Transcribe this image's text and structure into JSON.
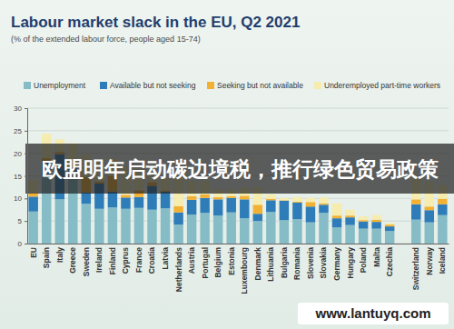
{
  "chart_data": {
    "type": "bar",
    "title": "Labour market slack in the EU, Q2 2021",
    "subtitle": "(% of the extended labour force, people aged 15-74)",
    "categories": [
      "EU",
      "Spain",
      "Italy",
      "Greece",
      "Sweden",
      "Ireland",
      "Finland",
      "Cyprus",
      "France",
      "Croatia",
      "Latvia",
      "Netherlands",
      "Austria",
      "Portugal",
      "Belgium",
      "Estonia",
      "Luxembourg",
      "Denmark",
      "Lithuania",
      "Bulgaria",
      "Romania",
      "Slovenia",
      "Slovakia",
      "Germany",
      "Hungary",
      "Poland",
      "Malta",
      "Czechia",
      null,
      "Switzerland",
      "Norway",
      "Iceland"
    ],
    "series": [
      {
        "name": "Unemployment",
        "color": "#86bcc6",
        "values": [
          7.1,
          15.3,
          9.8,
          15.8,
          8.8,
          7.7,
          8.0,
          7.7,
          7.9,
          7.5,
          7.8,
          4.2,
          6.4,
          6.8,
          6.2,
          6.9,
          5.6,
          5.0,
          7.0,
          5.2,
          5.4,
          4.7,
          6.8,
          3.6,
          4.1,
          3.3,
          3.3,
          2.8,
          null,
          5.3,
          4.7,
          6.3
        ]
      },
      {
        "name": "Available but not seeking",
        "color": "#2f7db8",
        "values": [
          3.3,
          2.6,
          10.0,
          1.2,
          2.5,
          5.6,
          3.5,
          2.5,
          2.4,
          5.3,
          3.7,
          2.7,
          3.3,
          3.3,
          3.6,
          3.2,
          4.2,
          1.6,
          2.6,
          4.3,
          3.7,
          3.5,
          1.8,
          2.0,
          1.7,
          1.6,
          1.5,
          1.0,
          null,
          3.4,
          2.7,
          2.4
        ]
      },
      {
        "name": "Seeking but not available",
        "color": "#f2b133",
        "values": [
          0.8,
          1.0,
          0.5,
          0.6,
          3.5,
          0.4,
          3.4,
          0.6,
          1.5,
          0.8,
          0.3,
          1.4,
          0.8,
          0.8,
          0.5,
          0.4,
          0.8,
          2.0,
          0.3,
          0.1,
          0.2,
          1.0,
          0.3,
          0.6,
          0.4,
          0.3,
          0.5,
          0.4,
          null,
          1.1,
          0.8,
          1.2
        ]
      },
      {
        "name": "Underemployed part-time workers",
        "color": "#f5ecae",
        "values": [
          2.8,
          5.4,
          2.8,
          4.6,
          5.0,
          4.4,
          3.9,
          6.2,
          4.8,
          1.6,
          2.7,
          6.5,
          3.4,
          2.9,
          1.7,
          1.5,
          1.8,
          3.9,
          1.0,
          0.5,
          1.0,
          0.9,
          1.3,
          2.7,
          1.3,
          0.8,
          1.0,
          0.3,
          null,
          5.0,
          5.4,
          3.0
        ]
      }
    ],
    "ylim": [
      0,
      30
    ],
    "yticks": [
      0,
      5,
      10,
      15,
      20,
      25,
      30
    ],
    "grid": true,
    "stacked": true,
    "legend": "top",
    "annotations": [
      "欧盟明年启动碳边境税，推行绿色贸易政策",
      "www.lantuyq.com"
    ]
  }
}
